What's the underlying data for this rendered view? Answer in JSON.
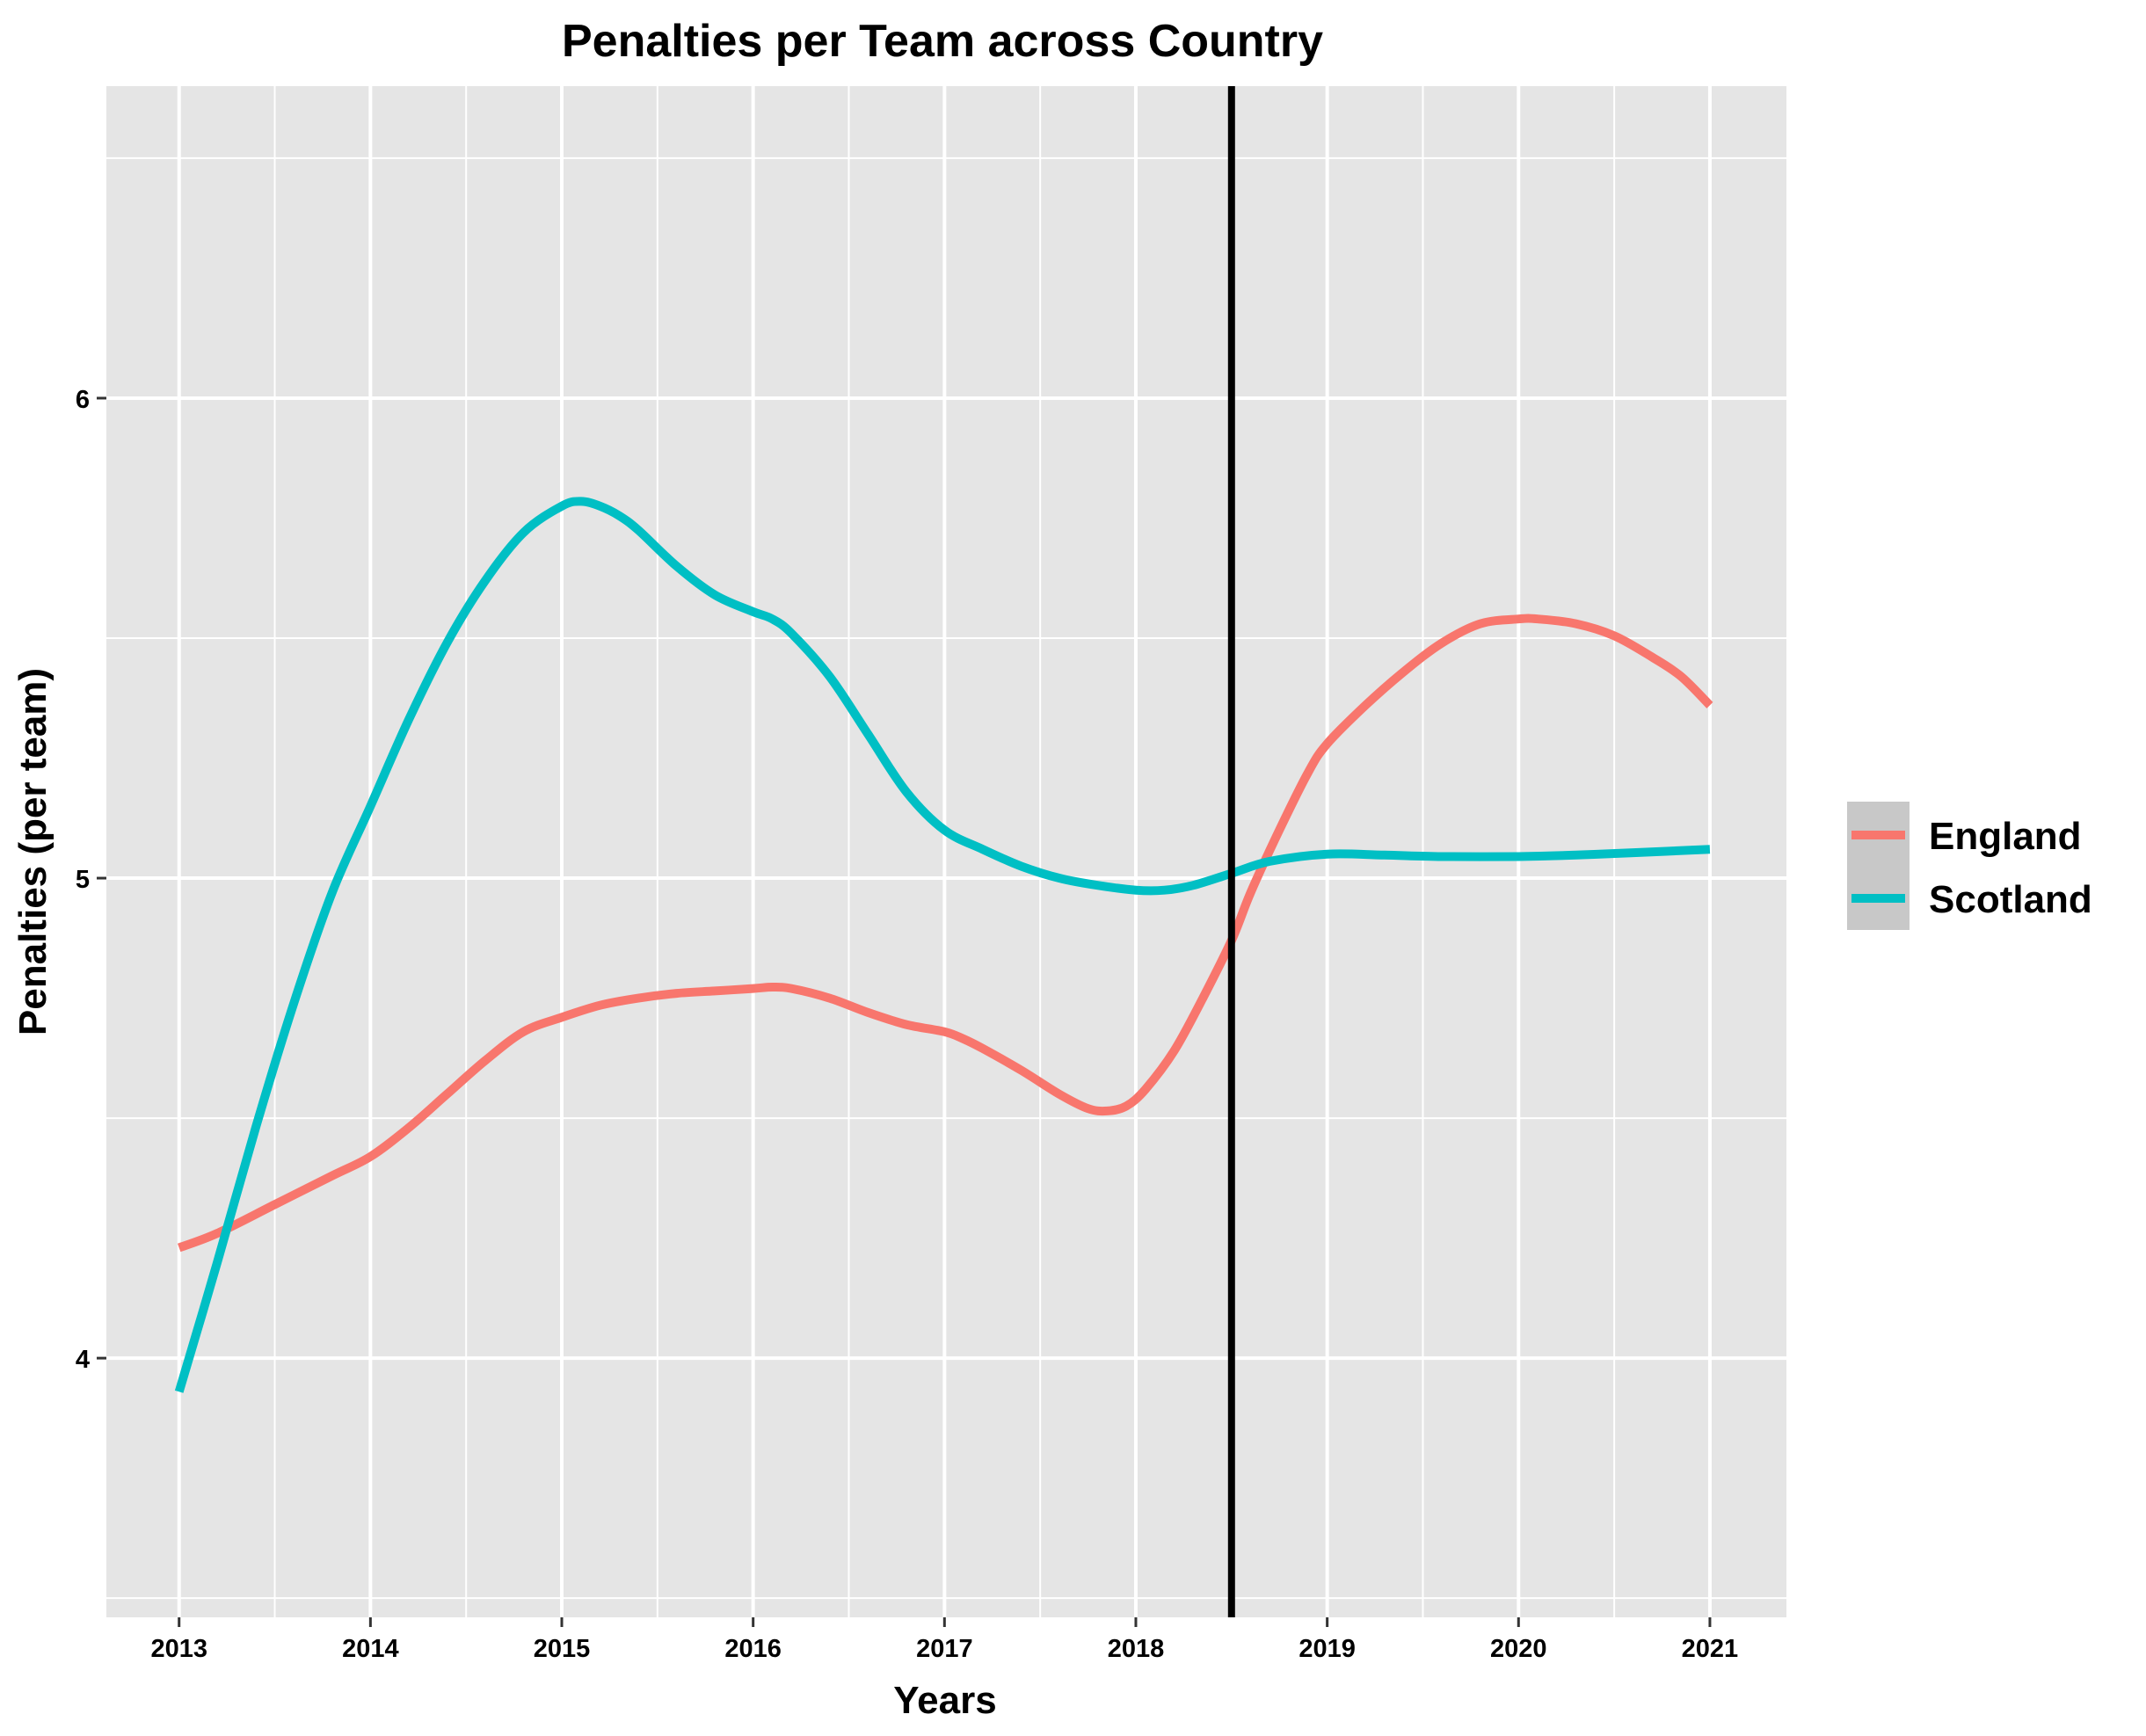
{
  "chart_data": {
    "type": "line",
    "title": "Penalties per Team across Country",
    "xlabel": "Years",
    "ylabel": "Penalties (per team)",
    "xlim": [
      2012.62,
      2021.4
    ],
    "ylim": [
      3.46,
      6.65
    ],
    "x_ticks": [
      2013,
      2014,
      2015,
      2016,
      2017,
      2018,
      2019,
      2020,
      2021
    ],
    "y_ticks": [
      4,
      5,
      6
    ],
    "grid": true,
    "vline": {
      "x": 2018.5,
      "color": "#000000"
    },
    "legend_position": "right",
    "series": [
      {
        "name": "England",
        "color": "#F8766D",
        "x": [
          2013,
          2013.2,
          2013.5,
          2013.8,
          2014,
          2014.2,
          2014.4,
          2014.6,
          2014.8,
          2015,
          2015.2,
          2015.4,
          2015.6,
          2015.8,
          2016,
          2016.1,
          2016.2,
          2016.4,
          2016.6,
          2016.8,
          2017,
          2017.1,
          2017.2,
          2017.4,
          2017.6,
          2017.75,
          2017.85,
          2017.95,
          2018.05,
          2018.2,
          2018.35,
          2018.5,
          2018.6,
          2018.75,
          2018.9,
          2019,
          2019.2,
          2019.4,
          2019.6,
          2019.8,
          2020,
          2020.1,
          2020.3,
          2020.5,
          2020.7,
          2020.85,
          2021
        ],
        "values": [
          4.23,
          4.26,
          4.32,
          4.38,
          4.42,
          4.48,
          4.55,
          4.62,
          4.68,
          4.71,
          4.735,
          4.75,
          4.76,
          4.765,
          4.77,
          4.773,
          4.77,
          4.75,
          4.72,
          4.695,
          4.68,
          4.665,
          4.645,
          4.6,
          4.55,
          4.52,
          4.515,
          4.525,
          4.56,
          4.64,
          4.75,
          4.87,
          4.97,
          5.1,
          5.22,
          5.28,
          5.36,
          5.43,
          5.49,
          5.53,
          5.54,
          5.54,
          5.53,
          5.505,
          5.46,
          5.42,
          5.36
        ]
      },
      {
        "name": "Scotland",
        "color": "#00BFC4",
        "x": [
          2013,
          2013.2,
          2013.4,
          2013.6,
          2013.8,
          2014,
          2014.2,
          2014.4,
          2014.6,
          2014.8,
          2015,
          2015.1,
          2015.2,
          2015.3,
          2015.4,
          2015.6,
          2015.8,
          2016,
          2016.1,
          2016.2,
          2016.4,
          2016.6,
          2016.8,
          2017,
          2017.2,
          2017.4,
          2017.6,
          2017.8,
          2018,
          2018.15,
          2018.3,
          2018.5,
          2018.7,
          2019,
          2019.3,
          2019.6,
          2020,
          2020.3,
          2020.6,
          2021
        ],
        "values": [
          3.93,
          4.2,
          4.48,
          4.74,
          4.97,
          5.15,
          5.33,
          5.49,
          5.62,
          5.72,
          5.775,
          5.785,
          5.775,
          5.755,
          5.725,
          5.65,
          5.59,
          5.555,
          5.54,
          5.51,
          5.42,
          5.3,
          5.18,
          5.1,
          5.06,
          5.025,
          5.0,
          4.985,
          4.975,
          4.975,
          4.985,
          5.01,
          5.035,
          5.05,
          5.048,
          5.045,
          5.045,
          5.048,
          5.053,
          5.06
        ]
      }
    ]
  }
}
